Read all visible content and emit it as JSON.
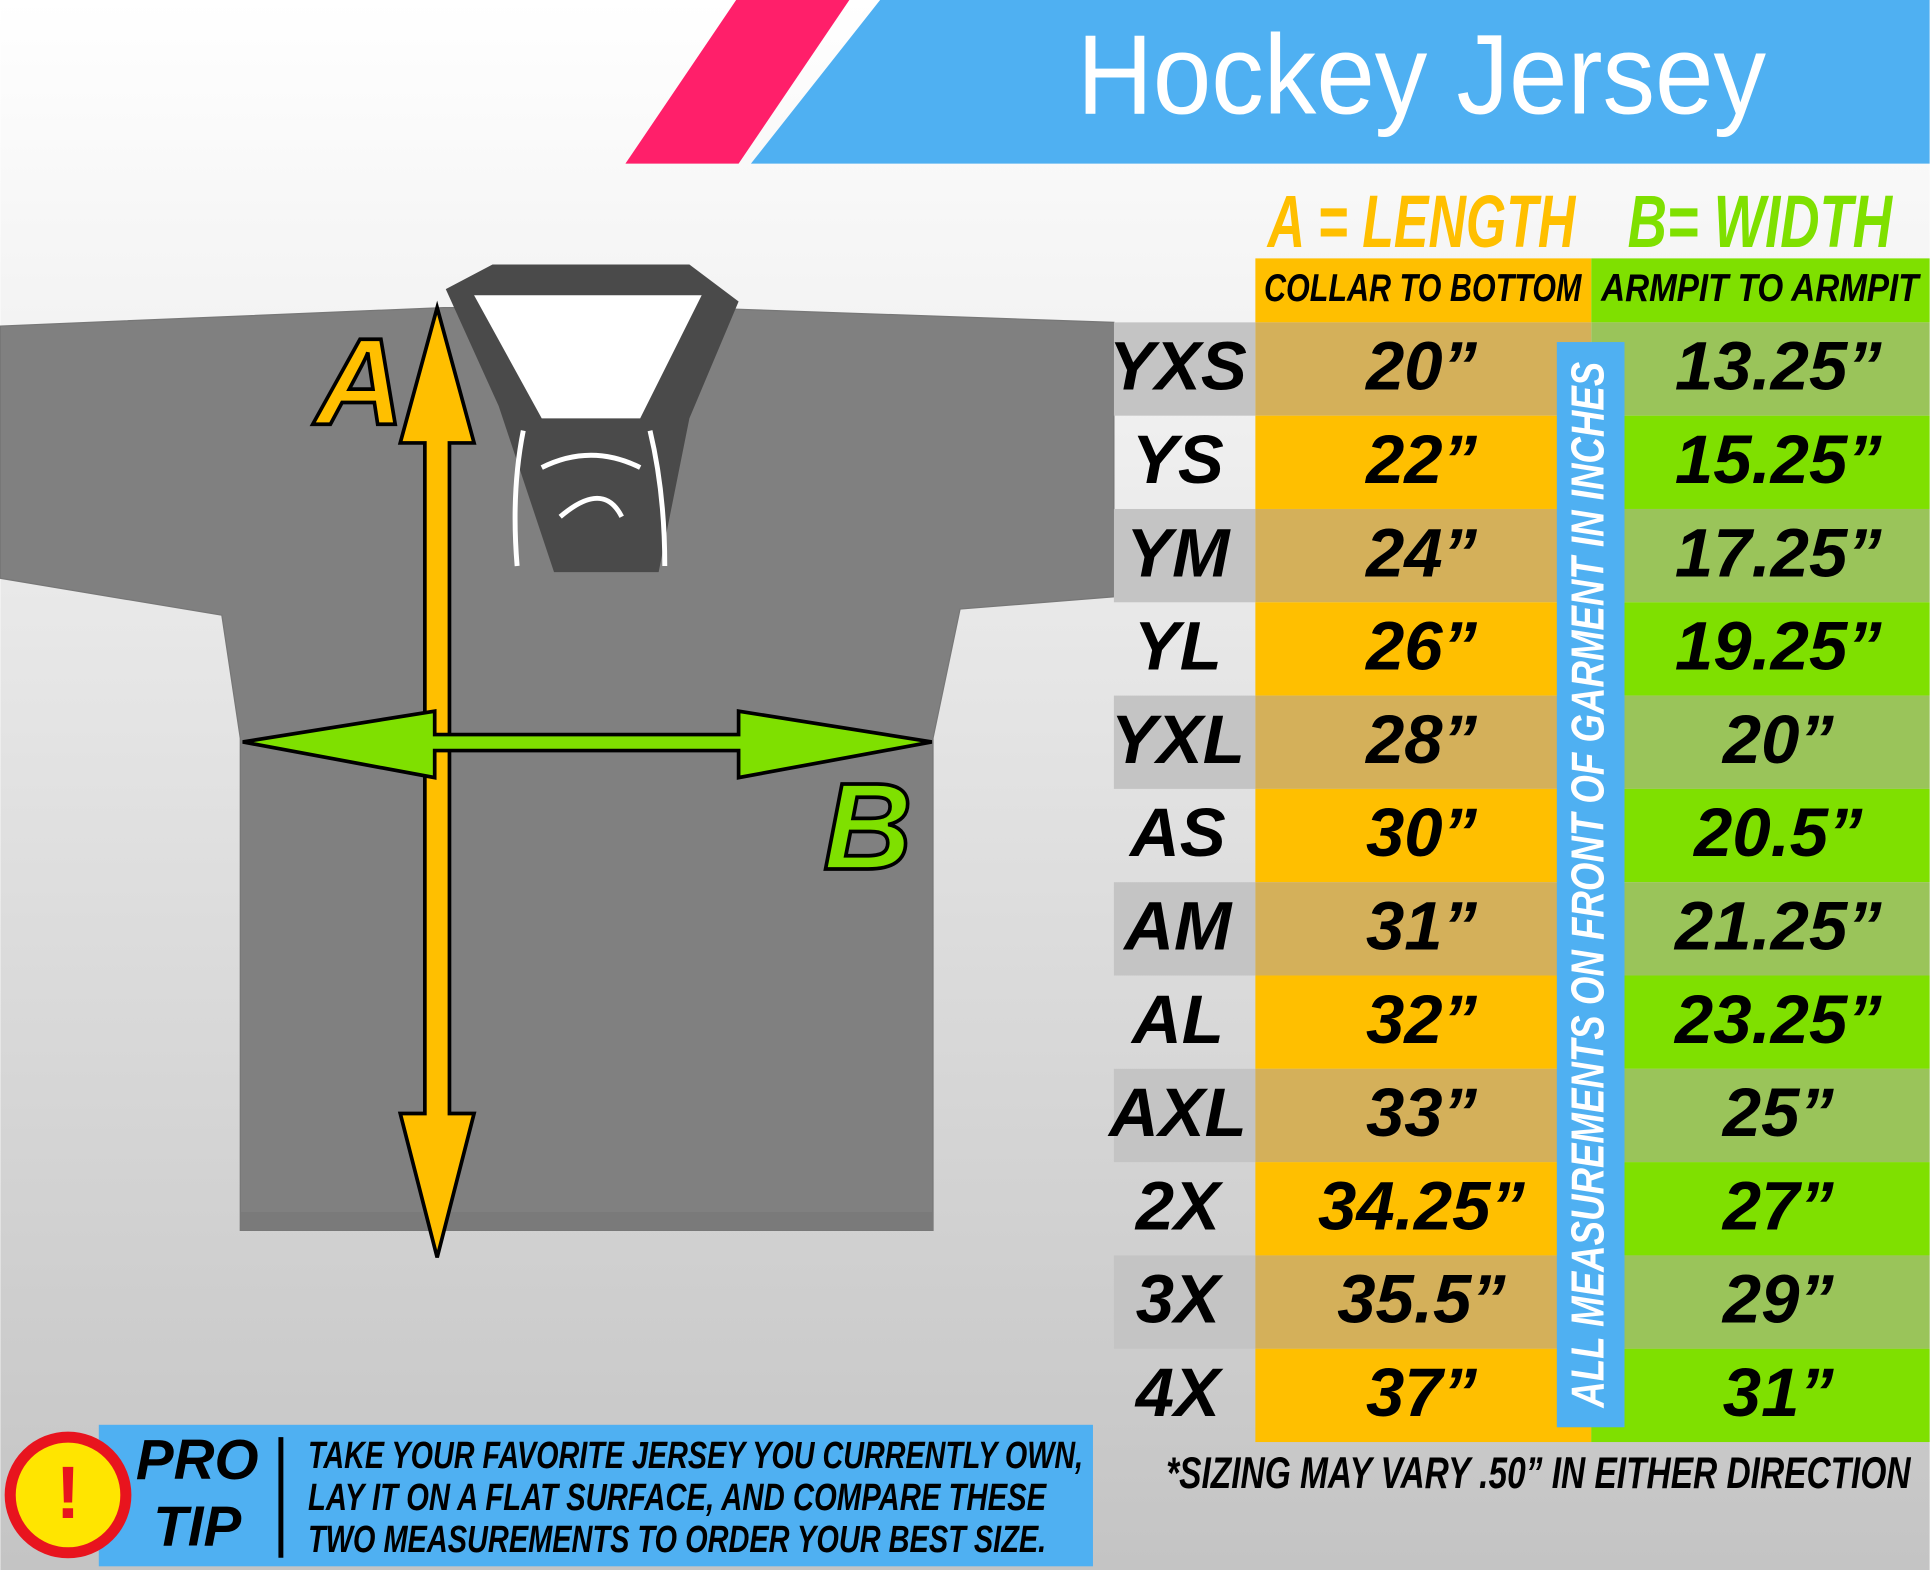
{
  "header": {
    "title": "Hockey Jersey"
  },
  "diagram": {
    "a_label": "A",
    "b_label": "B"
  },
  "table": {
    "columns": [
      {
        "heading": "A = LENGTH",
        "subheading": "COLLAR TO BOTTOM"
      },
      {
        "heading": "B= WIDTH",
        "subheading": "ARMPIT TO ARMPIT"
      }
    ],
    "rows": [
      [
        "YXS",
        "20”",
        "13.25”"
      ],
      [
        "YS",
        "22”",
        "15.25”"
      ],
      [
        "YM",
        "24”",
        "17.25”"
      ],
      [
        "YL",
        "26”",
        "19.25”"
      ],
      [
        "YXL",
        "28”",
        "20”"
      ],
      [
        "AS",
        "30”",
        "20.5”"
      ],
      [
        "AM",
        "31”",
        "21.25”"
      ],
      [
        "AL",
        "32”",
        "23.25”"
      ],
      [
        "AXL",
        "33”",
        "25”"
      ],
      [
        "2X",
        "34.25”",
        "27”"
      ],
      [
        "3X",
        "35.5”",
        "29”"
      ],
      [
        "4X",
        "37”",
        "31”"
      ]
    ],
    "vertical_note": "ALL MEASUREMENTS ON FRONT OF GARMENT IN INCHES",
    "footnote": "*SIZING MAY VARY .50” IN EITHER DIRECTION"
  },
  "pro_tip": {
    "icon": "!",
    "label": [
      "PRO",
      "TIP"
    ],
    "lines": [
      "TAKE YOUR FAVORITE JERSEY YOU CURRENTLY OWN,",
      "LAY IT ON A FLAT SURFACE, AND COMPARE THESE",
      "TWO MEASUREMENTS TO ORDER YOUR BEST SIZE."
    ]
  }
}
